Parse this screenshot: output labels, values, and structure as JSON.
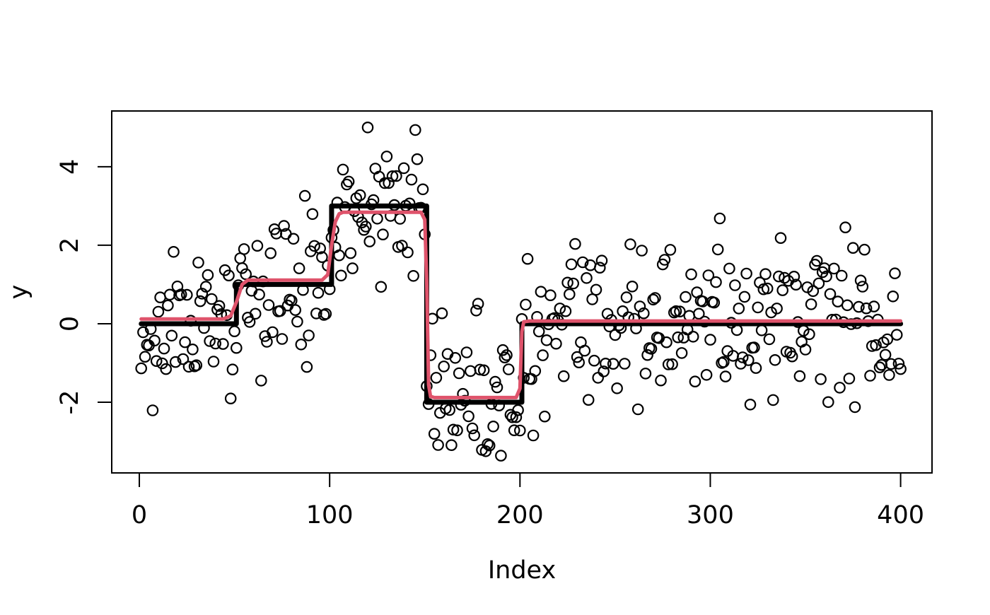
{
  "chart_data": {
    "type": "scatter",
    "title": "",
    "xlabel": "Index",
    "ylabel": "y",
    "x_ticks": [
      0,
      100,
      200,
      300,
      400
    ],
    "y_ticks": [
      -2,
      0,
      2,
      4
    ],
    "xlim": [
      -14.5,
      416.5
    ],
    "ylim": [
      -3.8,
      5.42
    ],
    "grid": false,
    "legend": "none",
    "background": "#ffffff",
    "axis_color": "#000000",
    "series": [
      {
        "name": "observations",
        "type": "points",
        "marker": "open-circle",
        "color": "#000000",
        "n": 400,
        "x_start": 1,
        "x_step": 1,
        "mean_breaks": [
          51,
          101,
          151,
          201
        ],
        "mean_values": [
          0,
          1,
          3,
          -2,
          0
        ],
        "noise_sd": 1,
        "seed": 11,
        "value_range": [
          -3.6,
          5.2
        ]
      },
      {
        "name": "true-signal",
        "type": "step",
        "color": "#000000",
        "line_width": 7,
        "x_domain": [
          1,
          400
        ],
        "breaks": [
          51,
          101,
          151,
          201
        ],
        "values": [
          0,
          1,
          3,
          -2,
          0
        ]
      },
      {
        "name": "estimate",
        "type": "line",
        "color": "#DF536B",
        "line_width": 5,
        "points": [
          [
            1,
            0.12
          ],
          [
            44,
            0.12
          ],
          [
            48,
            0.2
          ],
          [
            51,
            0.55
          ],
          [
            54,
            1.0
          ],
          [
            57,
            1.11
          ],
          [
            96,
            1.11
          ],
          [
            99,
            1.25
          ],
          [
            101,
            2.0
          ],
          [
            103,
            2.6
          ],
          [
            105,
            2.8
          ],
          [
            107,
            2.84
          ],
          [
            148,
            2.84
          ],
          [
            150,
            2.65
          ],
          [
            151,
            1.1
          ],
          [
            152,
            -1.55
          ],
          [
            153,
            -1.85
          ],
          [
            155,
            -1.88
          ],
          [
            198,
            -1.88
          ],
          [
            200,
            -1.65
          ],
          [
            201,
            -0.2
          ],
          [
            202,
            0.05
          ],
          [
            205,
            0.07
          ],
          [
            400,
            0.07
          ]
        ]
      }
    ]
  }
}
